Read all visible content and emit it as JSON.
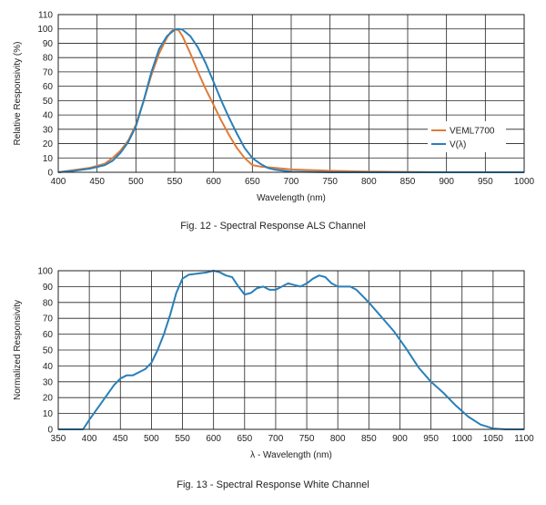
{
  "chart_data": [
    {
      "type": "line",
      "caption": "Fig. 12 - Spectral Response ALS Channel",
      "xlabel": "Wavelength (nm)",
      "ylabel": "Relative Responsivity (%)",
      "xlim": [
        400,
        1000
      ],
      "ylim": [
        0,
        110
      ],
      "xticks": [
        400,
        450,
        500,
        550,
        600,
        650,
        700,
        750,
        800,
        850,
        900,
        950,
        1000
      ],
      "yticks": [
        0,
        10,
        20,
        30,
        40,
        50,
        60,
        70,
        80,
        90,
        100,
        110
      ],
      "grid": true,
      "legend_position": "right",
      "series": [
        {
          "name": "VEML7700",
          "color": "#e07b39",
          "x": [
            400,
            420,
            440,
            460,
            470,
            480,
            490,
            500,
            510,
            520,
            530,
            540,
            545,
            550,
            555,
            560,
            570,
            580,
            590,
            600,
            610,
            620,
            630,
            640,
            650,
            660,
            680,
            700,
            750,
            800,
            900,
            1000
          ],
          "y": [
            0,
            1.5,
            3,
            6,
            10,
            15,
            22,
            33,
            50,
            68,
            83,
            94,
            98,
            100,
            99,
            95,
            83,
            70,
            58,
            47,
            36,
            26,
            17,
            10,
            5,
            4,
            3,
            2,
            1,
            0.5,
            0,
            0
          ]
        },
        {
          "name": "V(λ)",
          "color": "#2a7fb8",
          "x": [
            400,
            420,
            440,
            460,
            470,
            480,
            490,
            500,
            510,
            520,
            530,
            540,
            550,
            555,
            560,
            570,
            580,
            590,
            600,
            610,
            620,
            630,
            640,
            650,
            660,
            670,
            680,
            700,
            750,
            800,
            900,
            1000
          ],
          "y": [
            0,
            1,
            2.5,
            5,
            8,
            13.5,
            21,
            32,
            50,
            70,
            86,
            95,
            99.5,
            100,
            99.5,
            95,
            87,
            76,
            63,
            50,
            38,
            27,
            17,
            10,
            6,
            3,
            1.7,
            0.4,
            0,
            0,
            0,
            0
          ]
        }
      ]
    },
    {
      "type": "line",
      "caption": "Fig. 13 - Spectral Response White Channel",
      "xlabel": "λ - Wavelength (nm)",
      "ylabel": "Normalized Responsivity",
      "xlim": [
        350,
        1100
      ],
      "ylim": [
        0,
        100
      ],
      "xticks": [
        350,
        400,
        450,
        500,
        550,
        600,
        650,
        700,
        750,
        800,
        850,
        900,
        950,
        1000,
        1050,
        1100
      ],
      "yticks": [
        0,
        10,
        20,
        30,
        40,
        50,
        60,
        70,
        80,
        90,
        100
      ],
      "grid": true,
      "series": [
        {
          "name": "",
          "color": "#2a7fb8",
          "x": [
            350,
            390,
            400,
            420,
            440,
            450,
            460,
            470,
            480,
            490,
            500,
            510,
            520,
            530,
            540,
            550,
            560,
            570,
            580,
            590,
            600,
            610,
            620,
            630,
            640,
            650,
            660,
            670,
            680,
            690,
            700,
            710,
            720,
            730,
            740,
            750,
            760,
            770,
            780,
            790,
            800,
            810,
            820,
            830,
            840,
            850,
            870,
            890,
            910,
            930,
            950,
            970,
            990,
            1010,
            1030,
            1050,
            1070,
            1100
          ],
          "y": [
            0,
            0,
            6,
            17,
            28,
            32,
            34,
            34,
            36,
            38,
            42,
            50,
            60,
            72,
            86,
            95,
            97.5,
            98,
            98.5,
            99,
            100,
            99,
            97,
            96,
            90,
            85,
            86,
            89,
            90,
            88,
            88,
            90,
            92,
            91,
            90,
            92,
            95,
            97,
            96,
            92,
            90,
            90,
            90,
            88,
            84,
            80,
            71,
            62,
            51,
            39,
            30,
            23,
            15,
            8,
            3,
            0.5,
            0,
            0
          ]
        }
      ]
    }
  ]
}
